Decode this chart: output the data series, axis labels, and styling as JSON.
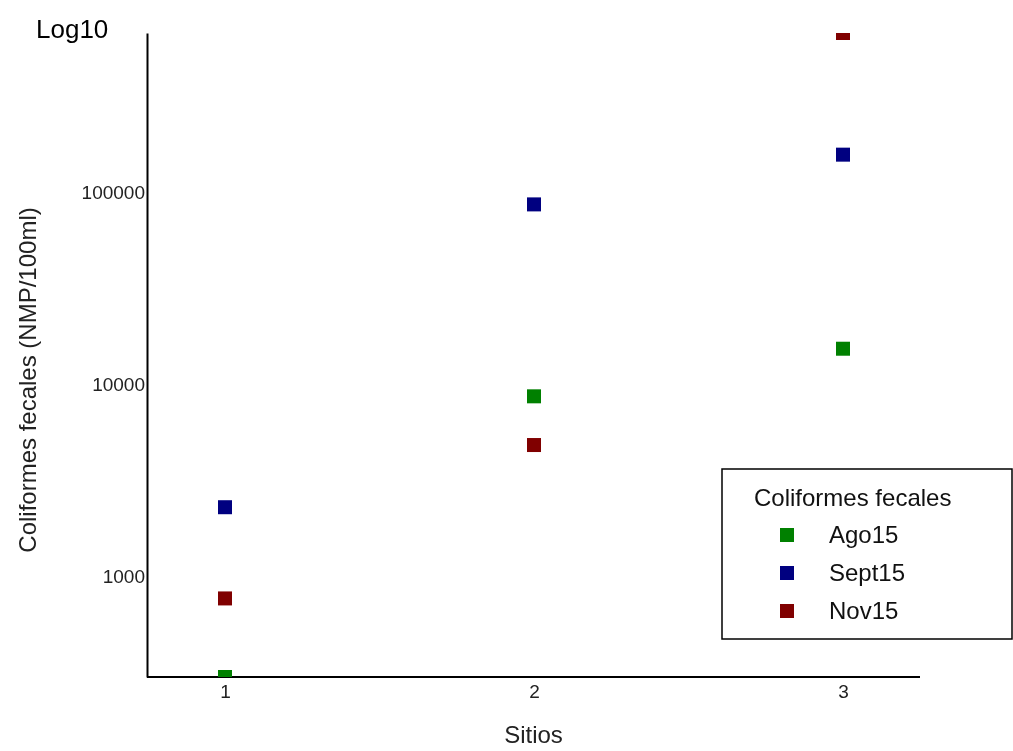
{
  "chart_data": {
    "type": "scatter",
    "xlabel": "Sitios",
    "ylabel": "Coliformes fecales (NMP/100ml)",
    "legend_title": "Coliformes fecales",
    "annotations": [
      "Log10"
    ],
    "categories": [
      "1",
      "2",
      "3"
    ],
    "log": "y",
    "ylim": [
      300,
      680000
    ],
    "yticks": [
      1000,
      10000,
      100000
    ],
    "marker": "square",
    "legend": "bottom right",
    "grid": false,
    "series": [
      {
        "name": "Ago15",
        "color": "#008000",
        "values": [
          300,
          8700,
          15400
        ]
      },
      {
        "name": "Sept15",
        "color": "#000080",
        "values": [
          2300,
          87000,
          158000
        ]
      },
      {
        "name": "Nov15",
        "color": "#800000",
        "values": [
          770,
          4850,
          680000
        ]
      }
    ]
  }
}
